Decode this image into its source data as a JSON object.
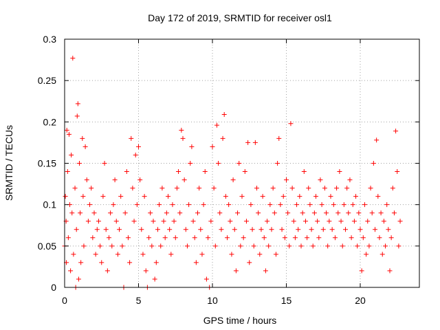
{
  "chart_data": {
    "type": "scatter",
    "title": "Day 172 of 2019, SRMTID for receiver osl1",
    "xlabel": "GPS time / hours",
    "ylabel": "SRMTID / TECUs",
    "xlim": [
      0,
      24
    ],
    "ylim": [
      0,
      0.3
    ],
    "grid": true,
    "marker": "plus",
    "xticks": [
      0,
      5,
      10,
      15,
      20
    ],
    "xtick_labels": [
      "0",
      "5",
      "10",
      "15",
      "20"
    ],
    "yticks": [
      0,
      0.05,
      0.1,
      0.15,
      0.2,
      0.25,
      0.3
    ],
    "ytick_labels": [
      "0",
      "0.05",
      "0.1",
      "0.15",
      "0.2",
      "0.25",
      "0.3"
    ],
    "series": [
      {
        "color": "#ff0000",
        "points": [
          [
            0.0,
            0.05
          ],
          [
            0.05,
            0.11
          ],
          [
            0.1,
            0.08
          ],
          [
            0.12,
            0.03
          ],
          [
            0.15,
            0.19
          ],
          [
            0.2,
            0.14
          ],
          [
            0.25,
            0.06
          ],
          [
            0.3,
            0.185
          ],
          [
            0.35,
            0.1
          ],
          [
            0.4,
            0.02
          ],
          [
            0.45,
            0.16
          ],
          [
            0.5,
            0.09
          ],
          [
            0.55,
            0.277
          ],
          [
            0.6,
            0.04
          ],
          [
            0.7,
            0.12
          ],
          [
            0.75,
            0.0
          ],
          [
            0.8,
            0.07
          ],
          [
            0.85,
            0.207
          ],
          [
            0.9,
            0.222
          ],
          [
            0.95,
            0.01
          ],
          [
            1.0,
            0.15
          ],
          [
            1.05,
            0.09
          ],
          [
            1.1,
            0.03
          ],
          [
            1.2,
            0.18
          ],
          [
            1.25,
            0.11
          ],
          [
            1.3,
            0.05
          ],
          [
            1.4,
            0.17
          ],
          [
            1.5,
            0.13
          ],
          [
            1.6,
            0.08
          ],
          [
            1.7,
            0.1
          ],
          [
            1.8,
            0.12
          ],
          [
            1.9,
            0.06
          ],
          [
            2.0,
            0.09
          ],
          [
            2.1,
            0.04
          ],
          [
            2.2,
            0.07
          ],
          [
            2.3,
            0.08
          ],
          [
            2.4,
            0.05
          ],
          [
            2.5,
            0.03
          ],
          [
            2.6,
            0.11
          ],
          [
            2.7,
            0.15
          ],
          [
            2.8,
            0.07
          ],
          [
            2.9,
            0.02
          ],
          [
            3.0,
            0.06
          ],
          [
            3.1,
            0.09
          ],
          [
            3.2,
            0.05
          ],
          [
            3.3,
            0.1
          ],
          [
            3.4,
            0.13
          ],
          [
            3.5,
            0.08
          ],
          [
            3.6,
            0.04
          ],
          [
            3.7,
            0.07
          ],
          [
            3.8,
            0.11
          ],
          [
            3.9,
            0.05
          ],
          [
            4.0,
            0.0
          ],
          [
            4.1,
            0.09
          ],
          [
            4.2,
            0.14
          ],
          [
            4.3,
            0.06
          ],
          [
            4.4,
            0.03
          ],
          [
            4.5,
            0.18
          ],
          [
            4.6,
            0.12
          ],
          [
            4.7,
            0.08
          ],
          [
            4.8,
            0.16
          ],
          [
            4.9,
            0.1
          ],
          [
            5.0,
            0.17
          ],
          [
            5.1,
            0.13
          ],
          [
            5.2,
            0.07
          ],
          [
            5.3,
            0.04
          ],
          [
            5.4,
            0.11
          ],
          [
            5.5,
            0.02
          ],
          [
            5.6,
            0.0
          ],
          [
            5.7,
            0.06
          ],
          [
            5.8,
            0.09
          ],
          [
            5.9,
            0.05
          ],
          [
            6.0,
            0.08
          ],
          [
            6.1,
            0.01
          ],
          [
            6.2,
            0.03
          ],
          [
            6.3,
            0.07
          ],
          [
            6.4,
            0.1
          ],
          [
            6.5,
            0.05
          ],
          [
            6.6,
            0.12
          ],
          [
            6.7,
            0.08
          ],
          [
            6.8,
            0.06
          ],
          [
            6.9,
            0.09
          ],
          [
            7.0,
            0.11
          ],
          [
            7.1,
            0.07
          ],
          [
            7.2,
            0.04
          ],
          [
            7.3,
            0.1
          ],
          [
            7.4,
            0.08
          ],
          [
            7.5,
            0.06
          ],
          [
            7.6,
            0.12
          ],
          [
            7.7,
            0.14
          ],
          [
            7.8,
            0.09
          ],
          [
            7.9,
            0.19
          ],
          [
            8.0,
            0.18
          ],
          [
            8.1,
            0.13
          ],
          [
            8.2,
            0.07
          ],
          [
            8.3,
            0.05
          ],
          [
            8.4,
            0.1
          ],
          [
            8.5,
            0.15
          ],
          [
            8.6,
            0.17
          ],
          [
            8.7,
            0.08
          ],
          [
            8.8,
            0.06
          ],
          [
            8.9,
            0.03
          ],
          [
            9.0,
            0.09
          ],
          [
            9.1,
            0.12
          ],
          [
            9.2,
            0.07
          ],
          [
            9.3,
            0.04
          ],
          [
            9.4,
            0.1
          ],
          [
            9.5,
            0.14
          ],
          [
            9.6,
            0.01
          ],
          [
            9.7,
            0.06
          ],
          [
            9.8,
            0.0
          ],
          [
            9.9,
            0.08
          ],
          [
            10.0,
            0.17
          ],
          [
            10.1,
            0.12
          ],
          [
            10.2,
            0.05
          ],
          [
            10.3,
            0.196
          ],
          [
            10.4,
            0.15
          ],
          [
            10.5,
            0.09
          ],
          [
            10.6,
            0.07
          ],
          [
            10.7,
            0.18
          ],
          [
            10.8,
            0.209
          ],
          [
            10.9,
            0.11
          ],
          [
            11.0,
            0.06
          ],
          [
            11.1,
            0.1
          ],
          [
            11.2,
            0.08
          ],
          [
            11.3,
            0.04
          ],
          [
            11.4,
            0.13
          ],
          [
            11.5,
            0.07
          ],
          [
            11.6,
            0.02
          ],
          [
            11.7,
            0.09
          ],
          [
            11.8,
            0.15
          ],
          [
            11.9,
            0.05
          ],
          [
            12.0,
            0.11
          ],
          [
            12.1,
            0.06
          ],
          [
            12.2,
            0.14
          ],
          [
            12.3,
            0.08
          ],
          [
            12.4,
            0.175
          ],
          [
            12.5,
            0.03
          ],
          [
            12.6,
            0.1
          ],
          [
            12.7,
            0.07
          ],
          [
            12.8,
            0.05
          ],
          [
            12.9,
            0.175
          ],
          [
            13.0,
            0.12
          ],
          [
            13.1,
            0.09
          ],
          [
            13.2,
            0.04
          ],
          [
            13.3,
            0.07
          ],
          [
            13.4,
            0.11
          ],
          [
            13.5,
            0.06
          ],
          [
            13.6,
            0.02
          ],
          [
            13.7,
            0.08
          ],
          [
            13.8,
            0.05
          ],
          [
            13.9,
            0.1
          ],
          [
            14.0,
            0.07
          ],
          [
            14.1,
            0.12
          ],
          [
            14.2,
            0.09
          ],
          [
            14.3,
            0.04
          ],
          [
            14.4,
            0.15
          ],
          [
            14.5,
            0.18
          ],
          [
            14.6,
            0.1
          ],
          [
            14.7,
            0.07
          ],
          [
            14.8,
            0.11
          ],
          [
            14.9,
            0.06
          ],
          [
            15.0,
            0.13
          ],
          [
            15.1,
            0.09
          ],
          [
            15.2,
            0.05
          ],
          [
            15.3,
            0.198
          ],
          [
            15.4,
            0.12
          ],
          [
            15.5,
            0.08
          ],
          [
            15.6,
            0.06
          ],
          [
            15.7,
            0.1
          ],
          [
            15.8,
            0.07
          ],
          [
            15.9,
            0.11
          ],
          [
            16.0,
            0.05
          ],
          [
            16.1,
            0.09
          ],
          [
            16.2,
            0.14
          ],
          [
            16.3,
            0.08
          ],
          [
            16.4,
            0.06
          ],
          [
            16.5,
            0.12
          ],
          [
            16.6,
            0.1
          ],
          [
            16.7,
            0.07
          ],
          [
            16.8,
            0.05
          ],
          [
            16.9,
            0.09
          ],
          [
            17.0,
            0.11
          ],
          [
            17.1,
            0.08
          ],
          [
            17.2,
            0.06
          ],
          [
            17.3,
            0.13
          ],
          [
            17.4,
            0.1
          ],
          [
            17.5,
            0.07
          ],
          [
            17.6,
            0.12
          ],
          [
            17.7,
            0.09
          ],
          [
            17.8,
            0.05
          ],
          [
            17.9,
            0.08
          ],
          [
            18.0,
            0.11
          ],
          [
            18.1,
            0.07
          ],
          [
            18.2,
            0.1
          ],
          [
            18.3,
            0.06
          ],
          [
            18.4,
            0.12
          ],
          [
            18.5,
            0.09
          ],
          [
            18.6,
            0.14
          ],
          [
            18.7,
            0.08
          ],
          [
            18.8,
            0.05
          ],
          [
            18.9,
            0.1
          ],
          [
            19.0,
            0.07
          ],
          [
            19.1,
            0.12
          ],
          [
            19.2,
            0.09
          ],
          [
            19.3,
            0.13
          ],
          [
            19.4,
            0.06
          ],
          [
            19.5,
            0.1
          ],
          [
            19.6,
            0.08
          ],
          [
            19.7,
            0.11
          ],
          [
            19.8,
            0.05
          ],
          [
            19.9,
            0.09
          ],
          [
            20.0,
            0.07
          ],
          [
            20.1,
            0.02
          ],
          [
            20.2,
            0.06
          ],
          [
            20.3,
            0.1
          ],
          [
            20.4,
            0.04
          ],
          [
            20.5,
            0.08
          ],
          [
            20.6,
            0.05
          ],
          [
            20.7,
            0.12
          ],
          [
            20.8,
            0.09
          ],
          [
            20.9,
            0.15
          ],
          [
            21.0,
            0.07
          ],
          [
            21.1,
            0.178
          ],
          [
            21.2,
            0.11
          ],
          [
            21.3,
            0.06
          ],
          [
            21.4,
            0.09
          ],
          [
            21.5,
            0.04
          ],
          [
            21.6,
            0.08
          ],
          [
            21.7,
            0.05
          ],
          [
            21.8,
            0.1
          ],
          [
            21.9,
            0.07
          ],
          [
            22.0,
            0.02
          ],
          [
            22.1,
            0.06
          ],
          [
            22.2,
            0.12
          ],
          [
            22.3,
            0.09
          ],
          [
            22.4,
            0.189
          ],
          [
            22.5,
            0.14
          ],
          [
            22.6,
            0.05
          ],
          [
            22.7,
            0.08
          ]
        ]
      }
    ]
  }
}
